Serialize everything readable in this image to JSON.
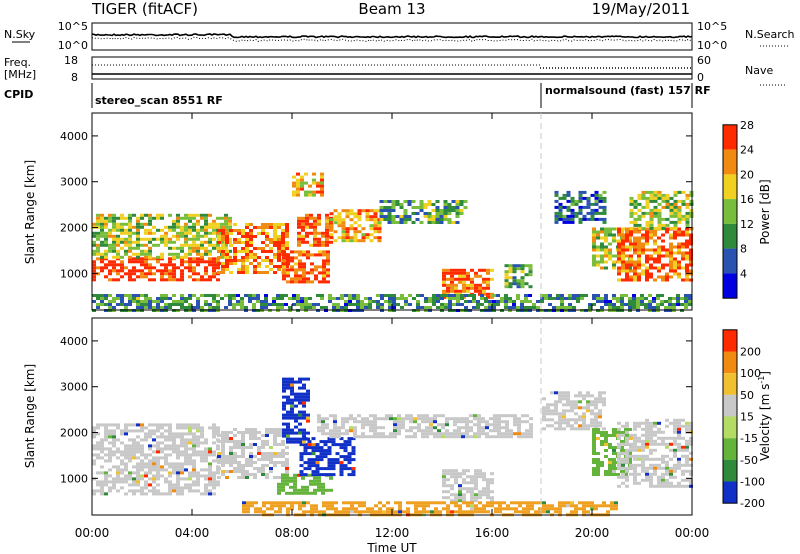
{
  "header": {
    "radar": "TIGER (fitACF)",
    "beam": "Beam 13",
    "date": "19/May/2011"
  },
  "top_panels": {
    "noise_sky_label": "N.Sky",
    "noise_search_label": "N.Search",
    "noise_left_ticks": [
      "10^5",
      "10^0"
    ],
    "noise_right_ticks": [
      "10^5",
      "10^0"
    ],
    "freq_label": "Freq.",
    "freq_unit": "[MHz]",
    "freq_ticks": [
      "18",
      "8"
    ],
    "nave_label": "Nave",
    "nave_ticks": [
      "60",
      "0"
    ],
    "cpid_label": "CPID",
    "cpid_segments": [
      {
        "name": "stereo_scan 8551 RF",
        "start_hour": 0.0
      },
      {
        "name": "normalsound (fast) 157 RF",
        "start_hour": 18.0
      }
    ]
  },
  "chart_data": [
    {
      "type": "heatmap",
      "panel": "power",
      "ylabel": "Slant Range [km]",
      "yticks": [
        1000,
        2000,
        3000,
        4000
      ],
      "ylim": [
        200,
        4500
      ],
      "xlim": [
        0,
        24
      ],
      "colorbar_label": "Power [dB]",
      "colorbar_ticks": [
        4,
        8,
        12,
        16,
        20,
        24,
        28
      ],
      "colorbar_colors": [
        "#0000e0",
        "#2a52b0",
        "#2f8a3c",
        "#78be3c",
        "#f0d020",
        "#f08a10",
        "#ff2a00"
      ],
      "regions": [
        {
          "x": [
            0,
            5.0
          ],
          "y": [
            850,
            1350
          ],
          "level": 0.95
        },
        {
          "x": [
            0,
            5.5
          ],
          "y": [
            1350,
            2300
          ],
          "level": 0.55
        },
        {
          "x": [
            5.0,
            7.8
          ],
          "y": [
            1000,
            2100
          ],
          "level": 0.8
        },
        {
          "x": [
            7.6,
            9.5
          ],
          "y": [
            800,
            1500
          ],
          "level": 0.9
        },
        {
          "x": [
            8.2,
            9.5
          ],
          "y": [
            1600,
            2300
          ],
          "level": 0.9
        },
        {
          "x": [
            9.5,
            11.5
          ],
          "y": [
            1700,
            2400
          ],
          "level": 0.75
        },
        {
          "x": [
            8.0,
            9.2
          ],
          "y": [
            2700,
            3200
          ],
          "level": 0.7
        },
        {
          "x": [
            11.5,
            15.0
          ],
          "y": [
            2100,
            2600
          ],
          "level": 0.4
        },
        {
          "x": [
            14.0,
            16.0
          ],
          "y": [
            500,
            1100
          ],
          "level": 0.85
        },
        {
          "x": [
            16.5,
            17.5
          ],
          "y": [
            700,
            1200
          ],
          "level": 0.45
        },
        {
          "x": [
            18.5,
            20.5
          ],
          "y": [
            2100,
            2800
          ],
          "level": 0.25
        },
        {
          "x": [
            20.0,
            21.5
          ],
          "y": [
            1100,
            2000
          ],
          "level": 0.6
        },
        {
          "x": [
            21.0,
            24.0
          ],
          "y": [
            850,
            2000
          ],
          "level": 0.85
        },
        {
          "x": [
            21.5,
            24.0
          ],
          "y": [
            2000,
            2800
          ],
          "level": 0.55
        },
        {
          "x": [
            0,
            24.0
          ],
          "y": [
            220,
            550
          ],
          "level": 0.35
        }
      ]
    },
    {
      "type": "heatmap",
      "panel": "velocity",
      "ylabel": "Slant Range [km]",
      "yticks": [
        1000,
        2000,
        3000,
        4000
      ],
      "ylim": [
        200,
        4500
      ],
      "xlim": [
        0,
        24
      ],
      "xlabel": "Time UT",
      "xticks": [
        "00:00",
        "04:00",
        "08:00",
        "12:00",
        "16:00",
        "20:00",
        "00:00"
      ],
      "colorbar_label": "Velocity [m s^-1]",
      "colorbar_ticks": [
        200,
        100,
        50,
        15,
        -15,
        -50,
        -100,
        -200
      ],
      "colorbar_colors": [
        "#1030c8",
        "#2f8a3c",
        "#64b43c",
        "#b4dc64",
        "#c8c8c8",
        "#f0c030",
        "#f08a10",
        "#ff2a00"
      ],
      "regions": [
        {
          "x": [
            0,
            5.0
          ],
          "y": [
            650,
            2200
          ],
          "level": "gray"
        },
        {
          "x": [
            5.0,
            7.8
          ],
          "y": [
            1000,
            2100
          ],
          "level": "gray"
        },
        {
          "x": [
            7.4,
            9.5
          ],
          "y": [
            700,
            1100
          ],
          "level": "green"
        },
        {
          "x": [
            8.3,
            10.5
          ],
          "y": [
            1100,
            1900
          ],
          "level": "blue"
        },
        {
          "x": [
            7.6,
            8.6
          ],
          "y": [
            1800,
            3200
          ],
          "level": "blue"
        },
        {
          "x": [
            9.0,
            17.5
          ],
          "y": [
            1900,
            2400
          ],
          "level": "gray"
        },
        {
          "x": [
            14.0,
            16.0
          ],
          "y": [
            500,
            1200
          ],
          "level": "gray"
        },
        {
          "x": [
            18.0,
            20.5
          ],
          "y": [
            2100,
            2900
          ],
          "level": "gray"
        },
        {
          "x": [
            20.0,
            21.5
          ],
          "y": [
            1100,
            2100
          ],
          "level": "green"
        },
        {
          "x": [
            21.0,
            24.0
          ],
          "y": [
            800,
            2300
          ],
          "level": "gray"
        },
        {
          "x": [
            6.0,
            21.0
          ],
          "y": [
            220,
            500
          ],
          "level": "orange"
        }
      ]
    }
  ],
  "colors": {
    "axis": "#000000",
    "dash": "#c8c8c8"
  }
}
